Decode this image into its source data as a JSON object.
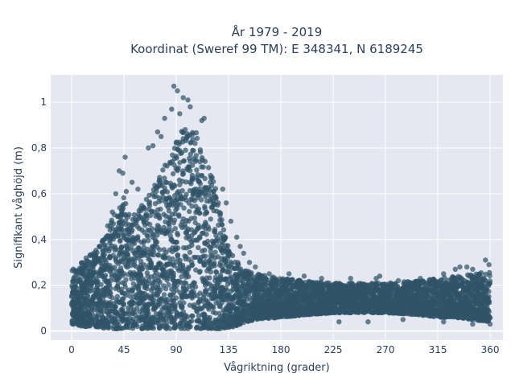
{
  "chart_data": {
    "type": "scatter",
    "title": "År 1979 - 2019",
    "subtitle": "Koordinat (Sweref 99 TM): E 348341, N 6189245",
    "xlabel": "Vågriktning (grader)",
    "ylabel": "Signifikant våghöjd (m)",
    "xlim": [
      -18,
      371
    ],
    "ylim": [
      -0.04,
      1.12
    ],
    "xticks": [
      0,
      45,
      90,
      135,
      180,
      225,
      270,
      315,
      360
    ],
    "xtick_labels": [
      "0",
      "45",
      "90",
      "135",
      "180",
      "225",
      "270",
      "315",
      "360"
    ],
    "yticks": [
      0,
      0.2,
      0.4,
      0.6,
      0.8,
      1
    ],
    "ytick_labels": [
      "0",
      "0,2",
      "0,4",
      "0,6",
      "0,8",
      "1"
    ],
    "grid": true,
    "legend": "none",
    "marker_color": "#2f5368",
    "background_color": "#e5e8f0",
    "series": [
      {
        "envelope": {
          "x": [
            0,
            10,
            20,
            30,
            40,
            45,
            50,
            55,
            60,
            65,
            70,
            75,
            80,
            85,
            90,
            95,
            100,
            105,
            110,
            115,
            120,
            125,
            130,
            135,
            140,
            145,
            150,
            160,
            180,
            200,
            225,
            250,
            270,
            300,
            315,
            330,
            345,
            360
          ],
          "y_min": [
            0.03,
            0.02,
            0.02,
            0.01,
            0.01,
            0.01,
            0.01,
            0.01,
            0.01,
            0.01,
            0.01,
            0.01,
            0.01,
            0.01,
            0.01,
            0.01,
            0.01,
            0.01,
            0.01,
            0.01,
            0.01,
            0.01,
            0.01,
            0.01,
            0.02,
            0.03,
            0.04,
            0.05,
            0.06,
            0.07,
            0.08,
            0.08,
            0.08,
            0.07,
            0.06,
            0.06,
            0.05,
            0.04
          ],
          "y_max": [
            0.27,
            0.31,
            0.35,
            0.44,
            0.56,
            0.6,
            0.5,
            0.53,
            0.55,
            0.58,
            0.63,
            0.68,
            0.73,
            0.78,
            0.83,
            0.88,
            0.89,
            0.88,
            0.85,
            0.78,
            0.7,
            0.6,
            0.48,
            0.38,
            0.33,
            0.28,
            0.27,
            0.25,
            0.23,
            0.22,
            0.21,
            0.21,
            0.21,
            0.22,
            0.23,
            0.24,
            0.25,
            0.26
          ]
        },
        "outliers": [
          [
            88,
            1.07
          ],
          [
            91,
            1.05
          ],
          [
            96,
            1.02
          ],
          [
            100,
            1.01
          ],
          [
            86,
            0.97
          ],
          [
            102,
            0.98
          ],
          [
            93,
            0.95
          ],
          [
            80,
            0.93
          ],
          [
            112,
            0.92
          ],
          [
            114,
            0.93
          ],
          [
            74,
            0.87
          ],
          [
            77,
            0.85
          ],
          [
            70,
            0.81
          ],
          [
            66,
            0.8
          ],
          [
            46,
            0.76
          ],
          [
            41,
            0.7
          ],
          [
            44,
            0.69
          ],
          [
            52,
            0.65
          ],
          [
            57,
            0.62
          ],
          [
            38,
            0.6
          ],
          [
            47,
            0.61
          ],
          [
            35,
            0.52
          ],
          [
            31,
            0.46
          ],
          [
            28,
            0.4
          ],
          [
            24,
            0.37
          ],
          [
            20,
            0.33
          ],
          [
            130,
            0.62
          ],
          [
            133,
            0.56
          ],
          [
            137,
            0.48
          ],
          [
            142,
            0.41
          ],
          [
            145,
            0.37
          ],
          [
            148,
            0.34
          ],
          [
            153,
            0.3
          ],
          [
            158,
            0.28
          ],
          [
            170,
            0.25
          ],
          [
            187,
            0.25
          ],
          [
            200,
            0.24
          ],
          [
            215,
            0.23
          ],
          [
            240,
            0.23
          ],
          [
            262,
            0.23
          ],
          [
            281,
            0.22
          ],
          [
            300,
            0.23
          ],
          [
            320,
            0.25
          ],
          [
            330,
            0.27
          ],
          [
            334,
            0.28
          ],
          [
            340,
            0.28
          ],
          [
            345,
            0.27
          ],
          [
            356,
            0.31
          ],
          [
            359,
            0.29
          ],
          [
            255,
            0.04
          ],
          [
            285,
            0.05
          ],
          [
            320,
            0.04
          ],
          [
            345,
            0.03
          ],
          [
            360,
            0.03
          ],
          [
            230,
            0.04
          ],
          [
            265,
            0.24
          ]
        ]
      }
    ]
  }
}
